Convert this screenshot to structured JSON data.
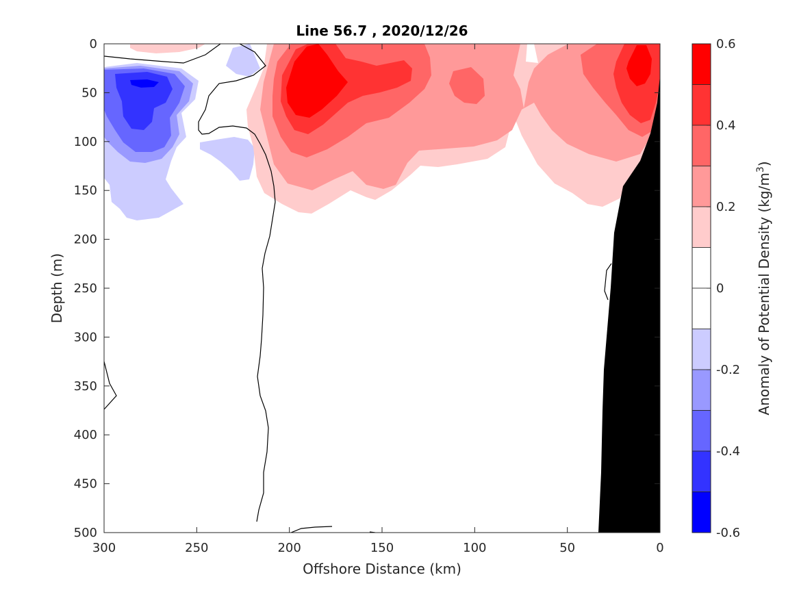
{
  "chart_data": {
    "type": "contour",
    "title": "Line 56.7 , 2020/12/26",
    "xlabel": "Offshore Distance (km)",
    "ylabel": "Depth (m)",
    "x_reversed": true,
    "y_reversed": true,
    "xlim": [
      0,
      300
    ],
    "ylim": [
      0,
      500
    ],
    "x_ticks": [
      "300",
      "250",
      "200",
      "150",
      "100",
      "50",
      "0"
    ],
    "y_ticks": [
      "0",
      "50",
      "100",
      "150",
      "200",
      "250",
      "300",
      "350",
      "400",
      "450",
      "500"
    ],
    "colorbar": {
      "label": "Anomaly of Potential Density (kg/m",
      "label_superscript": "3",
      "label_suffix": ")",
      "ticks": [
        "0.6",
        "0.4",
        "0.2",
        "0",
        "-0.2",
        "-0.4",
        "-0.6"
      ],
      "levels": [
        0.6,
        0.5,
        0.4,
        0.3,
        0.2,
        0.1,
        0.0,
        -0.1,
        -0.2,
        -0.3,
        -0.4,
        -0.5,
        -0.6
      ],
      "colors": [
        "#ff0000",
        "#ff3333",
        "#ff6666",
        "#ff9999",
        "#ffcccc",
        "#ffffff",
        "#ffffff",
        "#ccccff",
        "#9999ff",
        "#6666ff",
        "#3333ff",
        "#0000ff"
      ]
    },
    "features": {
      "positive_max_region": "offshore ~180-200 km, depth ~30-80 m (>0.5)",
      "negative_min_region": "offshore ~270-290 km, depth ~30-60 m (<-0.5)",
      "bathymetry_fill": "#000000"
    }
  }
}
